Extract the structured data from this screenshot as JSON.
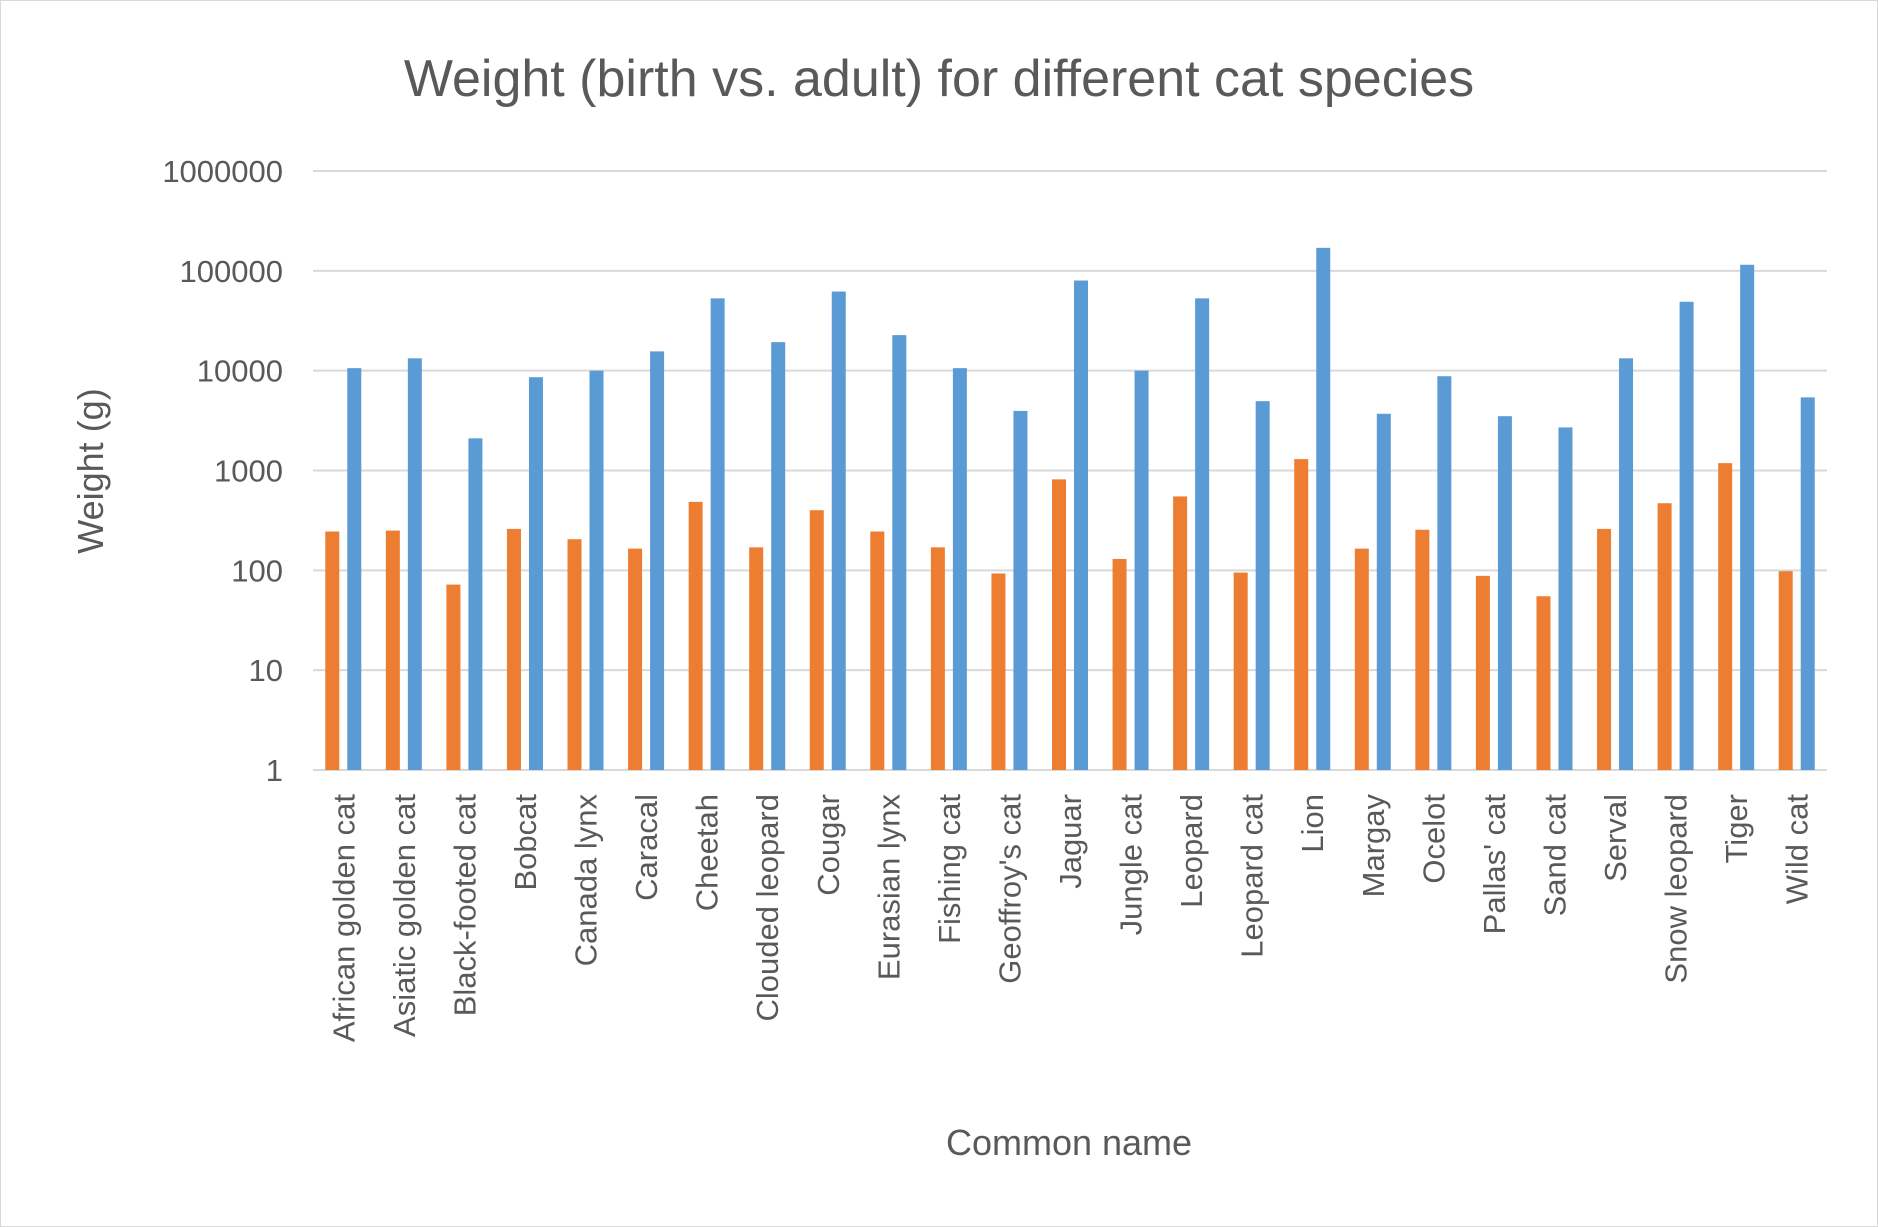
{
  "chart_data": {
    "type": "bar",
    "title": "Weight (birth vs. adult) for different cat species",
    "xlabel": "Common name",
    "ylabel": "Weight (g)",
    "y_scale": "log10",
    "ylim": [
      1,
      1000000
    ],
    "y_ticks": [
      "1",
      "10",
      "100",
      "1000",
      "10000",
      "100000",
      "1000000"
    ],
    "grid": true,
    "legend": "none",
    "categories": [
      "African golden cat",
      "Asiatic golden cat",
      "Black-footed cat",
      "Bobcat",
      "Canada lynx",
      "Caracal",
      "Cheetah",
      "Clouded leopard",
      "Cougar",
      "Eurasian lynx",
      "Fishing cat",
      "Geoffroy's cat",
      "Jaguar",
      "Jungle cat",
      "Leopard",
      "Leopard cat",
      "Lion",
      "Margay",
      "Ocelot",
      "Pallas' cat",
      "Sand cat",
      "Serval",
      "Snow leopard",
      "Tiger",
      "Wild cat"
    ],
    "series": [
      {
        "color": "#ed7d31",
        "values": [
          245,
          250,
          72,
          260,
          205,
          165,
          485,
          170,
          400,
          245,
          170,
          93,
          815,
          130,
          550,
          95,
          1300,
          165,
          255,
          88,
          55,
          260,
          470,
          1185,
          98
        ]
      },
      {
        "color": "#5b9bd5",
        "values": [
          10600,
          13300,
          2100,
          8600,
          10000,
          15600,
          53000,
          19300,
          62000,
          22700,
          10600,
          3950,
          80000,
          10000,
          53000,
          4950,
          170000,
          3700,
          8800,
          3500,
          2700,
          13300,
          49000,
          115000,
          5400
        ]
      }
    ]
  }
}
